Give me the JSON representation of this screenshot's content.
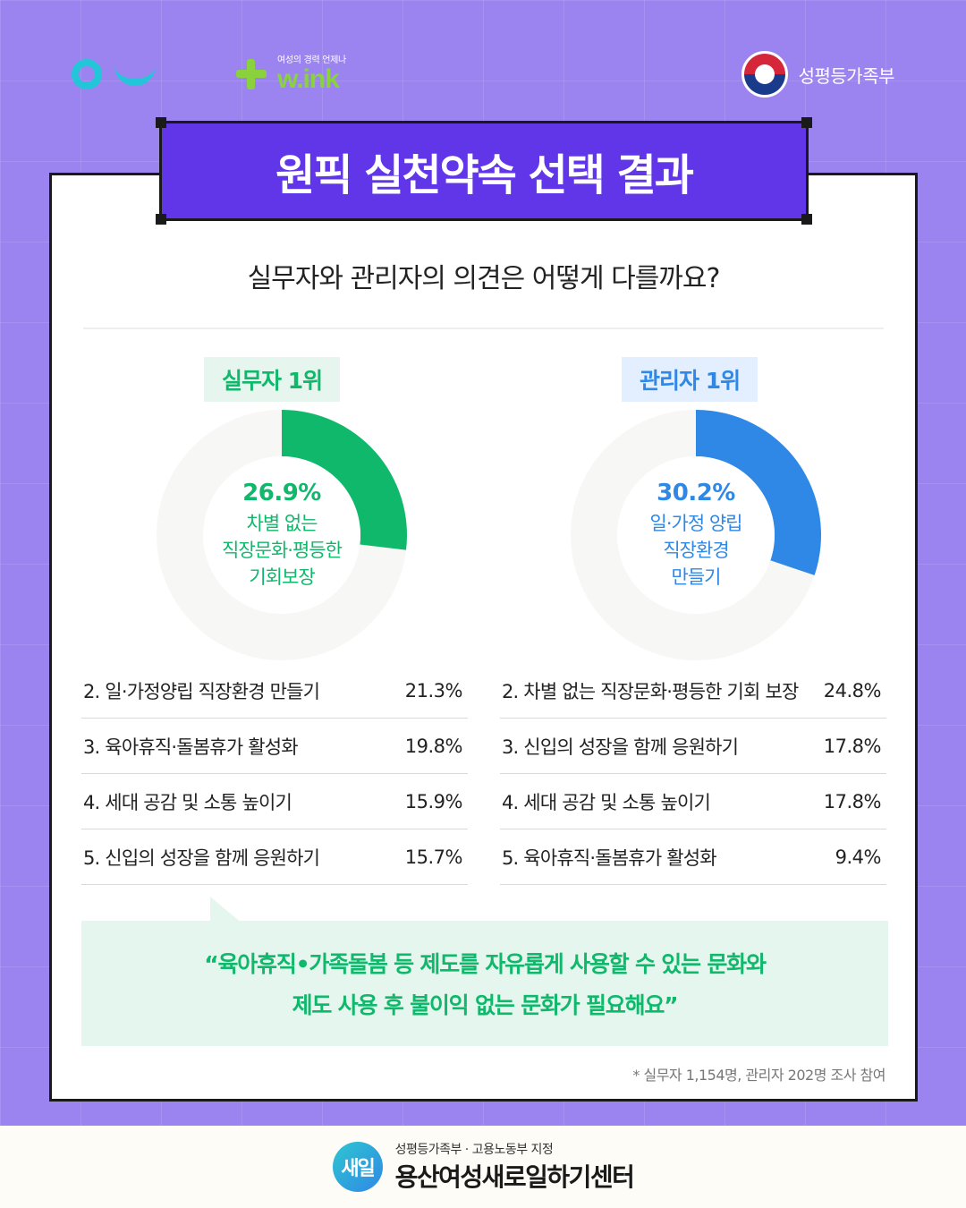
{
  "header": {
    "logo_tagline": "여성의 경력 언제나",
    "logo_wordmark": "w.ink",
    "ministry": "성평등가족부"
  },
  "title": "원픽 실천약속 선택 결과",
  "question": "실무자와 관리자의 의견은 어떻게 다를까요?",
  "colors": {
    "green": "#0fb86b",
    "blue": "#2f88e6",
    "track": "#f7f7f5",
    "title_bg": "#6136e8"
  },
  "chart_data": [
    {
      "type": "pie",
      "badge": "실무자 1위",
      "top_value": 26.9,
      "top_pct": "26.9%",
      "top_label_lines": [
        "차별 없는",
        "직장문화·평등한",
        "기회보장"
      ],
      "rank_items": [
        {
          "label": "2.  일·가정양립 직장환경 만들기",
          "value": "21.3%"
        },
        {
          "label": "3.  육아휴직·돌봄휴가 활성화",
          "value": "19.8%"
        },
        {
          "label": "4.  세대 공감 및 소통 높이기",
          "value": "15.9%"
        },
        {
          "label": "5.  신입의 성장을 함께 응원하기",
          "value": "15.7%"
        }
      ]
    },
    {
      "type": "pie",
      "badge": "관리자 1위",
      "top_value": 30.2,
      "top_pct": "30.2%",
      "top_label_lines": [
        "일·가정 양립",
        "직장환경",
        "만들기"
      ],
      "rank_items": [
        {
          "label": "2.  차별 없는 직장문화·평등한 기회 보장",
          "value": "24.8%"
        },
        {
          "label": "3.  신입의 성장을 함께 응원하기",
          "value": "17.8%"
        },
        {
          "label": "4.  세대 공감 및 소통 높이기",
          "value": "17.8%"
        },
        {
          "label": "5.  육아휴직·돌봄휴가 활성화",
          "value": "9.4%"
        }
      ]
    }
  ],
  "quote": {
    "line1": "“육아휴직•가족돌봄 등  제도를 자유롭게 사용할 수 있는 문화와",
    "line2": "제도 사용 후 불이익 없는 문화가 필요해요”"
  },
  "footnote": "* 실무자 1,154명, 관리자 202명 조사 참여",
  "footer": {
    "logo_text": "새일",
    "subtitle": "성평등가족부 · 고용노동부 지정",
    "center_name": "용산여성새로일하기센터"
  }
}
